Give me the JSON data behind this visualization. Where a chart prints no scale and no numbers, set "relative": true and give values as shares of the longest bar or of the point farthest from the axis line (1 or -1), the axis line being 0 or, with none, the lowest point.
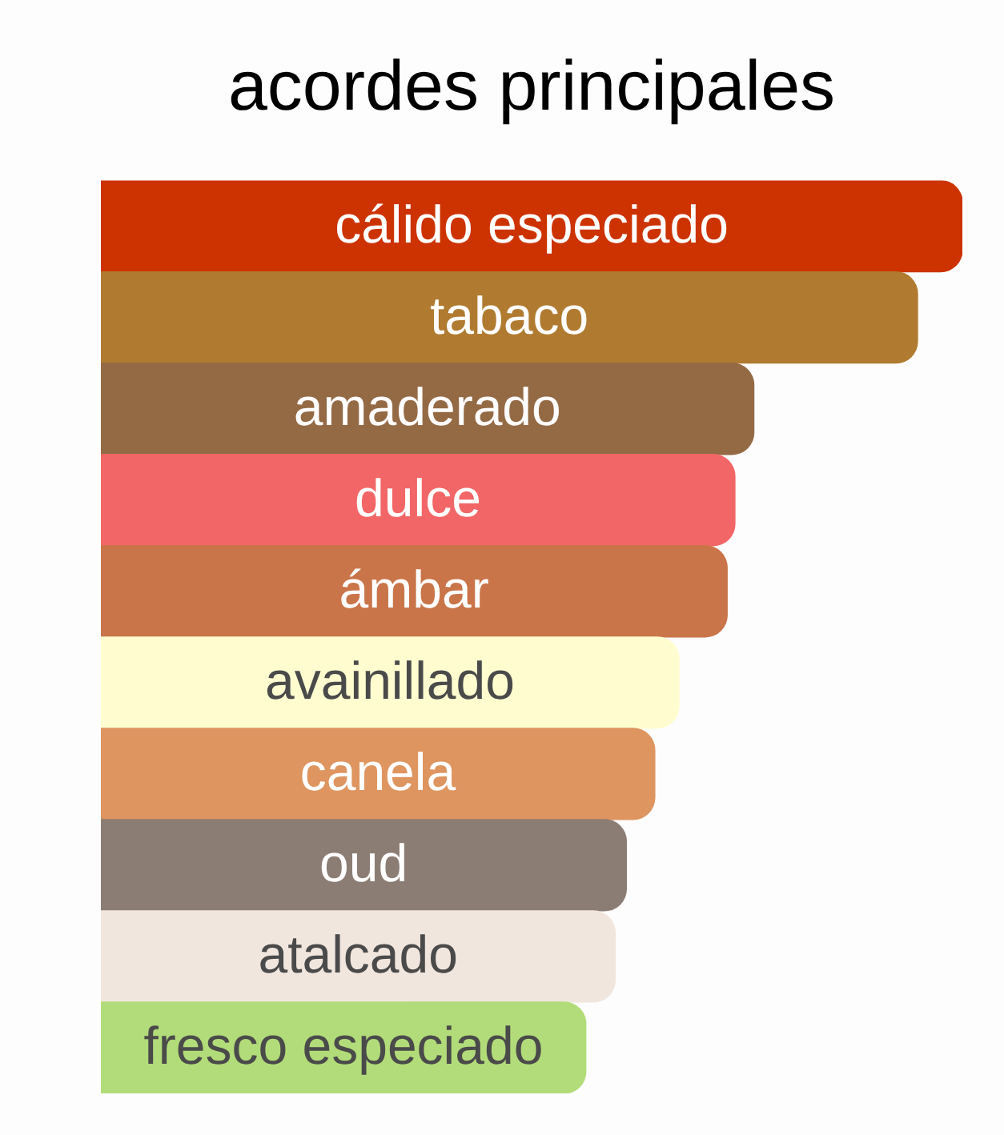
{
  "chart_data": {
    "type": "bar",
    "orientation": "horizontal",
    "relative": true,
    "title": "acordes principales",
    "categories": [
      "cálido especiado",
      "tabaco",
      "amaderado",
      "dulce",
      "ámbar",
      "avainillado",
      "canela",
      "oud",
      "atalcado",
      "fresco especiado"
    ],
    "values": [
      1,
      0.948,
      0.758,
      0.736,
      0.727,
      0.671,
      0.643,
      0.61,
      0.597,
      0.563
    ],
    "colors": [
      "#cc3300",
      "#b07b30",
      "#946a45",
      "#f26667",
      "#c97549",
      "#fffdd0",
      "#de955f",
      "#8c7d74",
      "#f1e6de",
      "#b2dc79"
    ],
    "legend": false
  }
}
